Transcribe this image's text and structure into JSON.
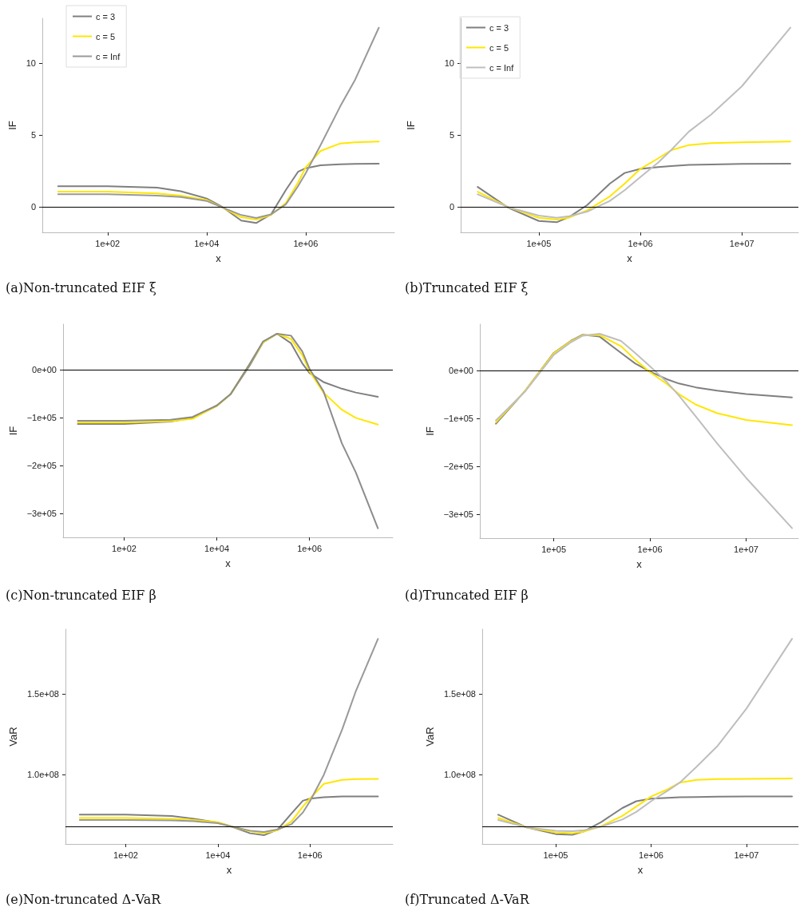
{
  "chart_data": [
    {
      "type": "line",
      "title": "(a)Non-truncated EIF ξ",
      "xlabel": "x",
      "ylabel": "IF",
      "log": "x",
      "legend": "top left",
      "marker": "none",
      "line_style": "solid",
      "x": [
        10,
        100,
        1000,
        3000,
        10000,
        20000,
        50000,
        100000,
        200000,
        400000,
        700000,
        1000000,
        2000000,
        5000000,
        10000000,
        30000000
      ],
      "xlim": [
        4.8,
        62000000
      ],
      "xticks": [
        {
          "value": 100,
          "label": "1e+02"
        },
        {
          "value": 10000,
          "label": "1e+04"
        },
        {
          "value": 1000000,
          "label": "1e+06"
        }
      ],
      "ylim": [
        -1.75,
        13.1
      ],
      "yticks": [
        0,
        5,
        10
      ],
      "ref_lines": [
        {
          "axis": "y",
          "value": 0,
          "color": "#000000"
        }
      ],
      "series": [
        {
          "name": "c = 3",
          "color": "#7f7f7f",
          "values": [
            1.45,
            1.45,
            1.35,
            1.1,
            0.6,
            0.05,
            -0.93,
            -1.1,
            -0.5,
            1.2,
            2.45,
            2.7,
            2.9,
            2.98,
            3.0,
            3.02
          ]
        },
        {
          "name": "c = 5",
          "color": "#ffe600",
          "values": [
            1.07,
            1.07,
            0.95,
            0.8,
            0.5,
            0,
            -0.7,
            -0.87,
            -0.55,
            0.3,
            1.7,
            2.75,
            3.9,
            4.42,
            4.5,
            4.55
          ]
        },
        {
          "name": "c = Inf",
          "color": "#999999",
          "values": [
            0.9,
            0.9,
            0.8,
            0.7,
            0.43,
            0,
            -0.55,
            -0.75,
            -0.5,
            0.2,
            1.45,
            2.35,
            4.3,
            7.0,
            8.85,
            12.45
          ]
        }
      ]
    },
    {
      "type": "line",
      "title": "(b)Truncated EIF ξ",
      "xlabel": "x",
      "ylabel": "IF",
      "log": "x",
      "legend": "top left",
      "marker": "none",
      "line_style": "solid",
      "x": [
        25000,
        50000,
        100000,
        150000,
        200000,
        300000,
        500000,
        700000,
        1000000,
        1500000,
        2000000,
        3000000,
        5000000,
        10000000,
        30000000
      ],
      "xlim": [
        17000,
        36000000
      ],
      "xticks": [
        {
          "value": 100000,
          "label": "1e+05"
        },
        {
          "value": 1000000,
          "label": "1e+06"
        },
        {
          "value": 10000000,
          "label": "1e+07"
        }
      ],
      "ylim": [
        -1.75,
        13.1
      ],
      "yticks": [
        0,
        5,
        10
      ],
      "ref_lines": [
        {
          "axis": "y",
          "value": 0,
          "color": "#000000"
        }
      ],
      "series": [
        {
          "name": "c = 3",
          "color": "#7f7f7f",
          "values": [
            1.4,
            -0.04,
            -0.96,
            -1.05,
            -0.68,
            0.15,
            1.63,
            2.37,
            2.65,
            2.78,
            2.85,
            2.93,
            2.96,
            3.0,
            3.02
          ]
        },
        {
          "name": "c = 5",
          "color": "#ffe600",
          "values": [
            1.07,
            0,
            -0.74,
            -0.87,
            -0.72,
            -0.22,
            0.74,
            1.63,
            2.65,
            3.39,
            3.94,
            4.31,
            4.44,
            4.5,
            4.55
          ]
        },
        {
          "name": "c = Inf",
          "color": "#bebebe",
          "values": [
            0.89,
            0,
            -0.59,
            -0.74,
            -0.63,
            -0.31,
            0.43,
            1.17,
            2.09,
            3.1,
            3.94,
            5.24,
            6.44,
            8.39,
            12.46
          ]
        }
      ]
    },
    {
      "type": "line",
      "title": "(c)Non-truncated EIF β",
      "xlabel": "x",
      "ylabel": "IF",
      "log": "x",
      "marker": "none",
      "line_style": "solid",
      "x": [
        10,
        100,
        1000,
        3000,
        10000,
        20000,
        50000,
        100000,
        200000,
        400000,
        700000,
        1000000,
        2000000,
        5000000,
        10000000,
        30000000
      ],
      "xlim": [
        4.8,
        63000000
      ],
      "xticks": [
        {
          "value": 100,
          "label": "1e+02"
        },
        {
          "value": 10000,
          "label": "1e+04"
        },
        {
          "value": 1000000,
          "label": "1e+06"
        }
      ],
      "ylim": [
        -350000,
        96000
      ],
      "yticks": [
        {
          "value": 0,
          "label": "0e+00"
        },
        {
          "value": -100000,
          "label": "−1e+05"
        },
        {
          "value": -200000,
          "label": "−2e+05"
        },
        {
          "value": -300000,
          "label": "−3e+05"
        }
      ],
      "ref_lines": [
        {
          "axis": "y",
          "value": 0,
          "color": "#000000"
        }
      ],
      "series": [
        {
          "color": "#7f7f7f",
          "values": [
            -113000,
            -113000,
            -108000,
            -100000,
            -75000,
            -50000,
            8000,
            58000,
            76000,
            56000,
            14000,
            -6000,
            -25000,
            -39000,
            -47000,
            -56000
          ]
        },
        {
          "color": "#ffe600",
          "values": [
            -110000,
            -110000,
            -107000,
            -102000,
            -75000,
            -50000,
            11000,
            58000,
            76000,
            65000,
            31000,
            -2000,
            -47000,
            -83000,
            -100000,
            -114000
          ]
        },
        {
          "color": "#8c8c8c",
          "values": [
            -106000,
            -106000,
            -104000,
            -98000,
            -74000,
            -50000,
            11000,
            60000,
            76000,
            72000,
            39000,
            3000,
            -44000,
            -153000,
            -214000,
            -331000
          ]
        }
      ]
    },
    {
      "type": "line",
      "title": "(d)Truncated EIF β",
      "xlabel": "x",
      "ylabel": "IF",
      "log": "x",
      "marker": "none",
      "line_style": "solid",
      "x": [
        25000,
        50000,
        100000,
        150000,
        200000,
        300000,
        500000,
        700000,
        1000000,
        1500000,
        2000000,
        3000000,
        5000000,
        10000000,
        30000000
      ],
      "xlim": [
        17000,
        35000000
      ],
      "xticks": [
        {
          "value": 100000,
          "label": "1e+05"
        },
        {
          "value": 1000000,
          "label": "1e+06"
        },
        {
          "value": 10000000,
          "label": "1e+07"
        }
      ],
      "ylim": [
        -350000,
        97000
      ],
      "yticks": [
        {
          "value": 0,
          "label": "0e+00"
        },
        {
          "value": -100000,
          "label": "−1e+05"
        },
        {
          "value": -200000,
          "label": "−2e+05"
        },
        {
          "value": -300000,
          "label": "−3e+05"
        }
      ],
      "ref_lines": [
        {
          "axis": "y",
          "value": 0,
          "color": "#000000"
        }
      ],
      "series": [
        {
          "color": "#7f7f7f",
          "values": [
            -111000,
            -43000,
            37000,
            62000,
            75000,
            71000,
            37000,
            15000,
            -2000,
            -18000,
            -27000,
            -35000,
            -42000,
            -49000,
            -56000
          ]
        },
        {
          "color": "#ffe600",
          "values": [
            -108000,
            -43000,
            36000,
            61000,
            74000,
            74000,
            51000,
            23000,
            -3000,
            -28000,
            -49000,
            -71000,
            -89000,
            -103000,
            -114000
          ]
        },
        {
          "color": "#bebebe",
          "values": [
            -104000,
            -44000,
            33000,
            59000,
            73000,
            77000,
            62000,
            37000,
            9000,
            -24000,
            -52000,
            -96000,
            -152000,
            -224000,
            -329000
          ]
        }
      ]
    },
    {
      "type": "line",
      "title": "(e)Non-truncated Δ-VaR",
      "xlabel": "x",
      "ylabel": "VaR",
      "log": "x",
      "marker": "none",
      "line_style": "solid",
      "x": [
        10,
        100,
        1000,
        3000,
        10000,
        20000,
        50000,
        100000,
        200000,
        400000,
        700000,
        1000000,
        2000000,
        5000000,
        10000000,
        30000000
      ],
      "xlim": [
        4.9,
        63000000
      ],
      "xticks": [
        {
          "value": 100,
          "label": "1e+02"
        },
        {
          "value": 10000,
          "label": "1e+04"
        },
        {
          "value": 1000000,
          "label": "1e+06"
        }
      ],
      "ylim": [
        57300000,
        190000000
      ],
      "yticks": [
        {
          "value": 100000000,
          "label": "1.0e+08"
        },
        {
          "value": 150000000,
          "label": "1.5e+08"
        }
      ],
      "ref_lines": [
        {
          "axis": "y",
          "value": 68000000,
          "color": "#000000"
        }
      ],
      "series": [
        {
          "color": "#7f7f7f",
          "values": [
            75400000,
            75400000,
            74600000,
            72900000,
            70500000,
            68000000,
            63900000,
            62700000,
            66300000,
            76200000,
            84000000,
            85300000,
            86100000,
            86600000,
            86600000,
            86600000
          ]
        },
        {
          "color": "#ffe600",
          "values": [
            73300000,
            73300000,
            72900000,
            72100000,
            70800000,
            68000000,
            65200000,
            63900000,
            65800000,
            71300000,
            80400000,
            85300000,
            94400000,
            96900000,
            97400000,
            97500000
          ]
        },
        {
          "color": "#999999",
          "values": [
            72100000,
            72100000,
            71800000,
            71300000,
            70100000,
            68000000,
            65500000,
            64700000,
            66300000,
            69600000,
            76700000,
            83700000,
            100000000,
            128000000,
            152000000,
            184000000
          ]
        }
      ]
    },
    {
      "type": "line",
      "title": "(f)Truncated Δ-VaR",
      "xlabel": "x",
      "ylabel": "VaR",
      "log": "x",
      "marker": "none",
      "line_style": "solid",
      "x": [
        25000,
        50000,
        100000,
        150000,
        200000,
        300000,
        500000,
        700000,
        1000000,
        1500000,
        2000000,
        3000000,
        5000000,
        10000000,
        30000000
      ],
      "xlim": [
        17000,
        35000000
      ],
      "xticks": [
        {
          "value": 100000,
          "label": "1e+05"
        },
        {
          "value": 1000000,
          "label": "1e+06"
        },
        {
          "value": 10000000,
          "label": "1e+07"
        }
      ],
      "ylim": [
        57300000,
        190000000
      ],
      "yticks": [
        {
          "value": 100000000,
          "label": "1.0e+08"
        },
        {
          "value": 150000000,
          "label": "1.5e+08"
        }
      ],
      "ref_lines": [
        {
          "axis": "y",
          "value": 68000000,
          "color": "#000000"
        }
      ],
      "series": [
        {
          "color": "#7f7f7f",
          "values": [
            75400000,
            67500000,
            63400000,
            63000000,
            65200000,
            70800000,
            79500000,
            83700000,
            85300000,
            85800000,
            86100000,
            86300000,
            86500000,
            86600000,
            86600000
          ]
        },
        {
          "color": "#ffe600",
          "values": [
            73300000,
            67500000,
            64400000,
            63900000,
            65000000,
            68300000,
            74600000,
            80400000,
            86600000,
            91100000,
            95200000,
            96900000,
            97400000,
            97500000,
            97700000
          ]
        },
        {
          "color": "#bebebe",
          "values": [
            72100000,
            67500000,
            65500000,
            65200000,
            65800000,
            68000000,
            72400000,
            77100000,
            83700000,
            90300000,
            95200000,
            105000000,
            118000000,
            141000000,
            184000000
          ]
        }
      ]
    }
  ]
}
